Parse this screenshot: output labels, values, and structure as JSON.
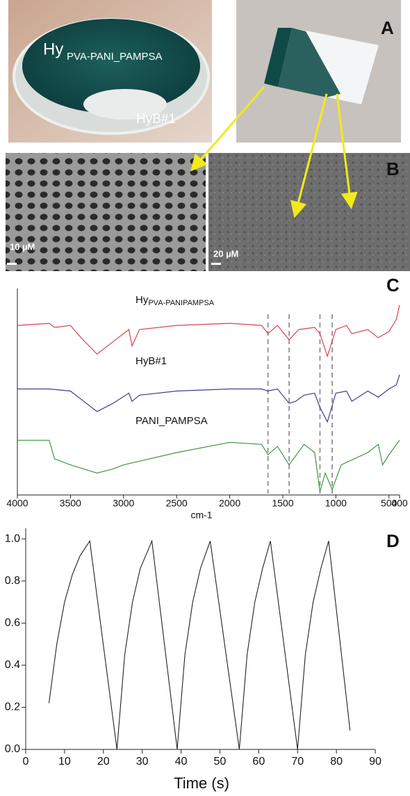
{
  "panel_labels": [
    "A",
    "B",
    "C",
    "D"
  ],
  "photo": {
    "hydrogel_label": "Hy",
    "hydrogel_label_sub": "PVA-PANI_PAMPSA",
    "bilayer_label": "HyB#1"
  },
  "sem": {
    "scale_left": "10 µM",
    "scale_right": "20 µM"
  },
  "chart_data": [
    {
      "type": "line",
      "x_label": "cm-1",
      "xlim": [
        4000,
        400
      ],
      "xticks": [
        4000,
        3500,
        3000,
        2500,
        2000,
        1500,
        1000,
        500,
        400
      ],
      "ylim": [
        0,
        100
      ],
      "reference_lines": [
        1640,
        1440,
        1150,
        1035
      ],
      "series": [
        {
          "name": "Hy",
          "name_sub": "PVA-PANIPAMPSA",
          "color": "#d9434f",
          "x": [
            4000,
            3700,
            3650,
            3500,
            3400,
            3250,
            3100,
            2950,
            2920,
            2850,
            2500,
            2000,
            1700,
            1640,
            1550,
            1440,
            1350,
            1200,
            1150,
            1080,
            1000,
            900,
            850,
            700,
            600,
            500,
            430,
            400
          ],
          "values": [
            82,
            83,
            81,
            82,
            76,
            68,
            74,
            80,
            72,
            80,
            82,
            83,
            82,
            78,
            82,
            75,
            80,
            81,
            78,
            67,
            80,
            82,
            78,
            80,
            76,
            79,
            85,
            92
          ]
        },
        {
          "name": "HyB#1",
          "color": "#3b3f8f",
          "x": [
            4000,
            3700,
            3500,
            3400,
            3250,
            3100,
            2950,
            2920,
            2850,
            2500,
            2000,
            1700,
            1640,
            1550,
            1440,
            1380,
            1300,
            1200,
            1150,
            1080,
            1000,
            900,
            850,
            700,
            600,
            500,
            430,
            400
          ],
          "values": [
            51,
            51,
            50,
            46,
            40,
            44,
            49,
            45,
            48,
            50,
            51,
            51,
            50,
            51,
            44,
            45,
            48,
            49,
            42,
            35,
            49,
            50,
            45,
            50,
            47,
            51,
            53,
            58
          ]
        },
        {
          "name": "PANI_PAMPSA",
          "color": "#3a9a3a",
          "x": [
            4000,
            3700,
            3650,
            3500,
            3250,
            3100,
            3000,
            2500,
            2000,
            1700,
            1640,
            1550,
            1440,
            1300,
            1200,
            1150,
            1100,
            1035,
            950,
            700,
            600,
            560,
            500,
            400
          ],
          "values": [
            26,
            26,
            17,
            14,
            10,
            12,
            14,
            20,
            25,
            24,
            19,
            23,
            14,
            24,
            20,
            1,
            10,
            2,
            14,
            20,
            24,
            14,
            19,
            26
          ]
        }
      ]
    },
    {
      "type": "line",
      "x_label": "Time (s)",
      "xlim": [
        0,
        90
      ],
      "xticks": [
        0,
        10,
        20,
        30,
        40,
        50,
        60,
        70,
        80,
        90
      ],
      "ylim": [
        0,
        1.05
      ],
      "yticks": [
        {
          "value": 0,
          "label": "0.0"
        },
        0.2,
        0.4,
        0.6,
        0.8,
        {
          "value": 1,
          "label": "1.0"
        }
      ],
      "color": "#222222",
      "x": [
        6,
        8,
        10,
        12,
        14,
        16.5,
        23.5,
        25.5,
        27.5,
        29.5,
        32.5,
        39,
        41,
        43,
        45,
        47.5,
        55,
        57,
        59,
        61,
        63,
        70,
        72,
        74,
        76,
        78,
        83.5
      ],
      "values": [
        0.22,
        0.5,
        0.7,
        0.83,
        0.92,
        0.99,
        0,
        0.45,
        0.7,
        0.86,
        0.99,
        0,
        0.45,
        0.7,
        0.86,
        0.99,
        0,
        0.45,
        0.7,
        0.86,
        0.99,
        0,
        0.45,
        0.7,
        0.86,
        0.99,
        0.09
      ]
    }
  ]
}
